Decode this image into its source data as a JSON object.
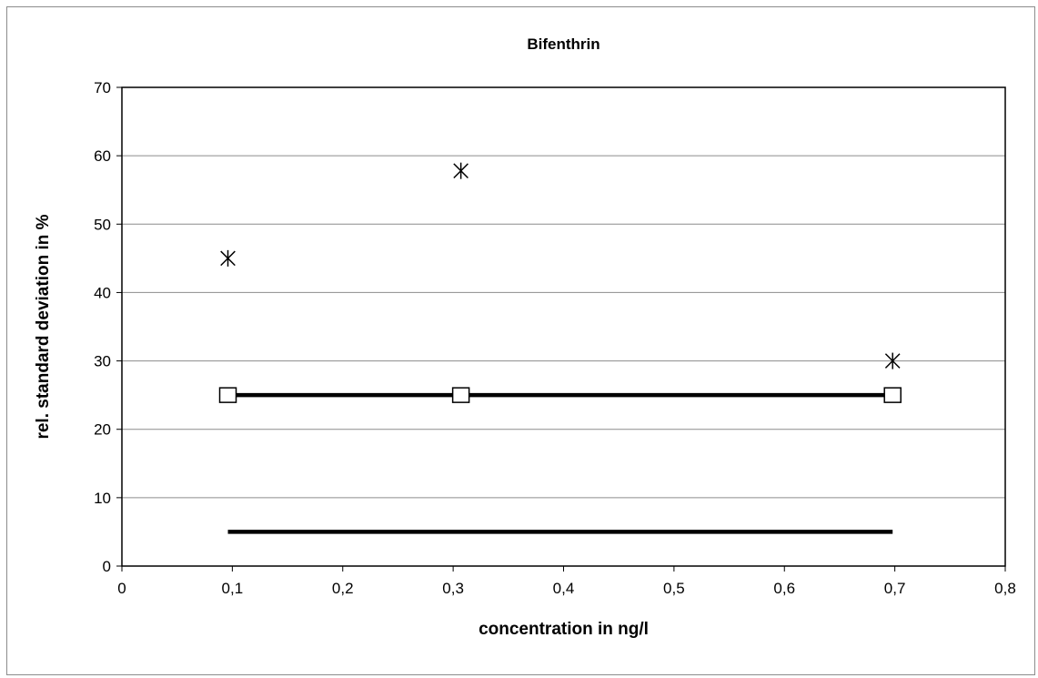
{
  "chart_data": {
    "type": "scatter",
    "title": "Bifenthrin",
    "xlabel": "concentration in ng/l",
    "ylabel": "rel. standard deviation in %",
    "xlim": [
      0,
      0.8
    ],
    "ylim": [
      0,
      70
    ],
    "x_ticks": [
      0,
      0.1,
      0.2,
      0.3,
      0.4,
      0.5,
      0.6,
      0.7,
      0.8
    ],
    "x_tick_labels": [
      "0",
      "0,1",
      "0,2",
      "0,3",
      "0,4",
      "0,5",
      "0,6",
      "0,7",
      "0,8"
    ],
    "y_ticks": [
      0,
      10,
      20,
      30,
      40,
      50,
      60,
      70
    ],
    "y_tick_labels": [
      "0",
      "10",
      "20",
      "30",
      "40",
      "50",
      "60",
      "70"
    ],
    "grid": "horizontal",
    "legend": "none",
    "series": [
      {
        "marker": "asterisk",
        "line": false,
        "color": "#000000",
        "x": [
          0.096,
          0.307,
          0.698
        ],
        "y": [
          45,
          57.8,
          30
        ]
      },
      {
        "marker": "square",
        "line": true,
        "color": "#000000",
        "x": [
          0.096,
          0.307,
          0.698
        ],
        "y": [
          25,
          25,
          25
        ]
      },
      {
        "marker": "none",
        "line": true,
        "color": "#000000",
        "x": [
          0.096,
          0.698
        ],
        "y": [
          5,
          5
        ]
      }
    ]
  }
}
